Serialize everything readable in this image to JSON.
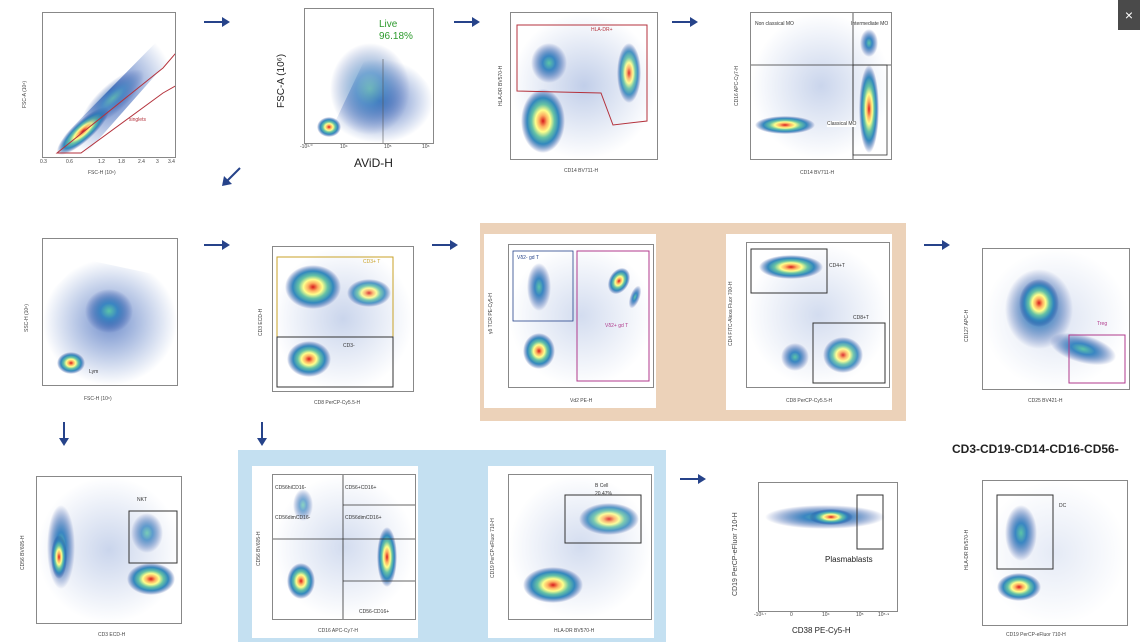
{
  "close_icon": "×",
  "colors": {
    "tan": "#ecd2b9",
    "lightblue": "#c4e0f1",
    "arrow": "#26438a",
    "gate_red": "#b4323c",
    "gate_pink": "#b03a8c",
    "gate_gold": "#c9a227",
    "live_green": "#2d9a2d"
  },
  "plots": {
    "p1": {
      "xlabel": "FSC-H (10⁶)",
      "ylabel": "FSC-A (10⁶)",
      "gate": "singlets",
      "xticks": [
        "0.3",
        "0.6",
        "1.2",
        "1.8",
        "2.4",
        "3",
        "3.4"
      ]
    },
    "p2": {
      "xlabel": "AViD-H",
      "ylabel": "FSC-A (10⁶)",
      "gate": "Live",
      "pct": "96.18%",
      "xticks": [
        "-10³·⁰",
        "10⁴",
        "10⁵",
        "10⁶"
      ]
    },
    "p3": {
      "xlabel": "CD14 BV711-H",
      "ylabel": "HLA-DR BV570-H",
      "gate": "HLA-DR+"
    },
    "p4": {
      "xlabel": "CD14 BV711-H",
      "ylabel": "CD16 APC-Cy7-H",
      "g1": "Non classical MO",
      "g2": "Intermediate MO",
      "g3": "Classical MO"
    },
    "p5": {
      "xlabel": "FSC-H (10⁶)",
      "ylabel": "SSC-H (10⁶)",
      "gate": "Lym"
    },
    "p6": {
      "xlabel": "CD8 PerCP-Cy5.5-H",
      "ylabel": "CD3 ECD-H",
      "g1": "CD3+ T",
      "g2": "CD3-"
    },
    "p7": {
      "xlabel": "Vd2 PE-H",
      "ylabel": "γδ TCR PE-Cy5-H",
      "g1": "Vδ2- gd T",
      "g2": "Vδ2+ gd T"
    },
    "p8": {
      "xlabel": "CD8 PerCP-Cy5.5-H",
      "ylabel": "CD4 FITC-Alexa Fluor 700-H",
      "g1": "CD4+T",
      "g2": "CD8+T"
    },
    "p9": {
      "xlabel": "CD25 BV421-H",
      "ylabel": "CD127 APC-H",
      "gate": "Treg"
    },
    "p10": {
      "xlabel": "CD3 ECD-H",
      "ylabel": "CD56 BV605-H",
      "gate": "NKT"
    },
    "p11": {
      "xlabel": "CD16 APC-Cy7-H",
      "ylabel": "CD56 BV605-H",
      "g1": "CD56hiCD16-",
      "g2": "CD56+CD16+",
      "g3": "CD56dimCD16-",
      "g4": "CD56dimCD16+",
      "g5": "CD56-CD16+"
    },
    "p12": {
      "xlabel": "HLA-DR BV570-H",
      "ylabel": "CD19 PerCP-eFluor 710-H",
      "gate": "B Cell",
      "pct": "20.47%"
    },
    "p13": {
      "xlabel": "CD38 PE-Cy5-H",
      "ylabel": "CD19 PerCP-eFluor 710-H",
      "gate": "Plasmablasts",
      "xticks": [
        "-10³·⁷",
        "0",
        "10⁴",
        "10⁵",
        "10⁵·⁹"
      ]
    },
    "p14": {
      "xlabel": "CD19 PerCP-eFluor 710-H",
      "ylabel": "HLA-DR BV570-H",
      "gate": "DC"
    }
  },
  "heading": "CD3-CD19-CD14-CD16-CD56-"
}
